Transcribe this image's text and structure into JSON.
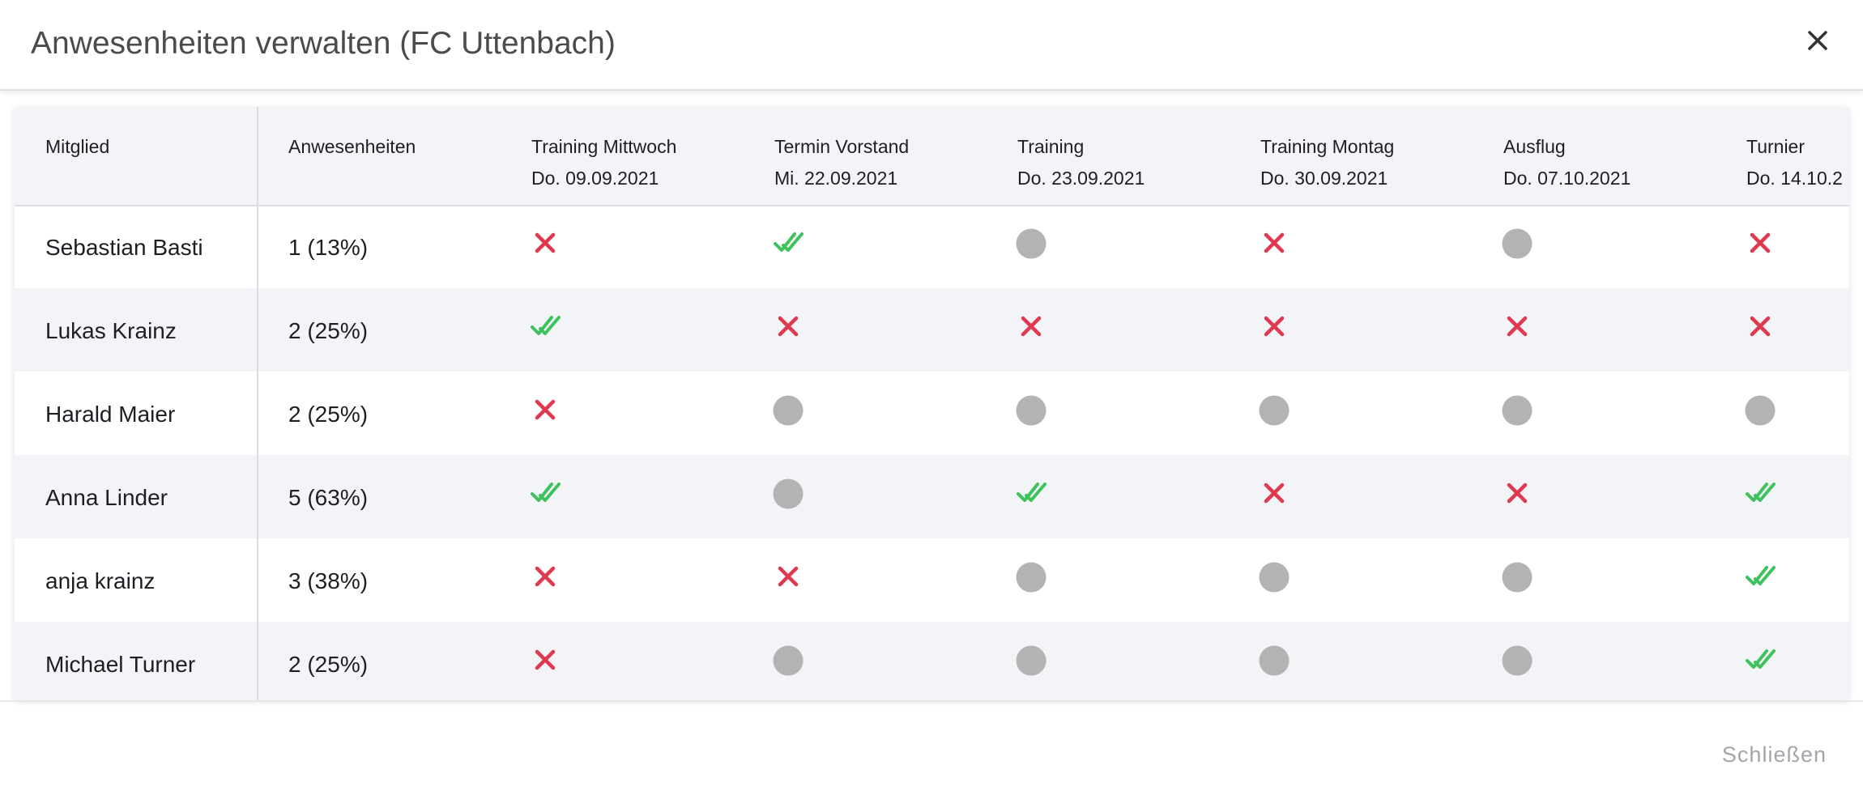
{
  "header": {
    "title": "Anwesenheiten verwalten (FC Uttenbach)"
  },
  "table": {
    "columns": [
      "Mitglied",
      "Anwesenheiten"
    ],
    "events": [
      {
        "name": "Training Mittwoch",
        "date": "Do. 09.09.2021"
      },
      {
        "name": "Termin Vorstand",
        "date": "Mi. 22.09.2021"
      },
      {
        "name": "Training",
        "date": "Do. 23.09.2021"
      },
      {
        "name": "Training Montag",
        "date": "Do. 30.09.2021"
      },
      {
        "name": "Ausflug",
        "date": "Do. 07.10.2021"
      },
      {
        "name": "Turnier",
        "date": "Do. 14.10.2"
      }
    ],
    "rows": [
      {
        "member": "Sebastian Basti",
        "attendance": "1 (13%)",
        "status": [
          "absent",
          "present",
          "open",
          "absent",
          "open",
          "absent"
        ]
      },
      {
        "member": "Lukas Krainz",
        "attendance": "2 (25%)",
        "status": [
          "present",
          "absent",
          "absent",
          "absent",
          "absent",
          "absent"
        ]
      },
      {
        "member": "Harald Maier",
        "attendance": "2 (25%)",
        "status": [
          "absent",
          "open",
          "open",
          "open",
          "open",
          "open"
        ]
      },
      {
        "member": "Anna Linder",
        "attendance": "5 (63%)",
        "status": [
          "present",
          "open",
          "present",
          "absent",
          "absent",
          "present"
        ]
      },
      {
        "member": "anja krainz",
        "attendance": "3 (38%)",
        "status": [
          "absent",
          "absent",
          "open",
          "open",
          "open",
          "present"
        ]
      },
      {
        "member": "Michael Turner",
        "attendance": "2 (25%)",
        "status": [
          "absent",
          "open",
          "open",
          "open",
          "open",
          "present"
        ]
      }
    ]
  },
  "footer": {
    "button": "Schließen"
  }
}
